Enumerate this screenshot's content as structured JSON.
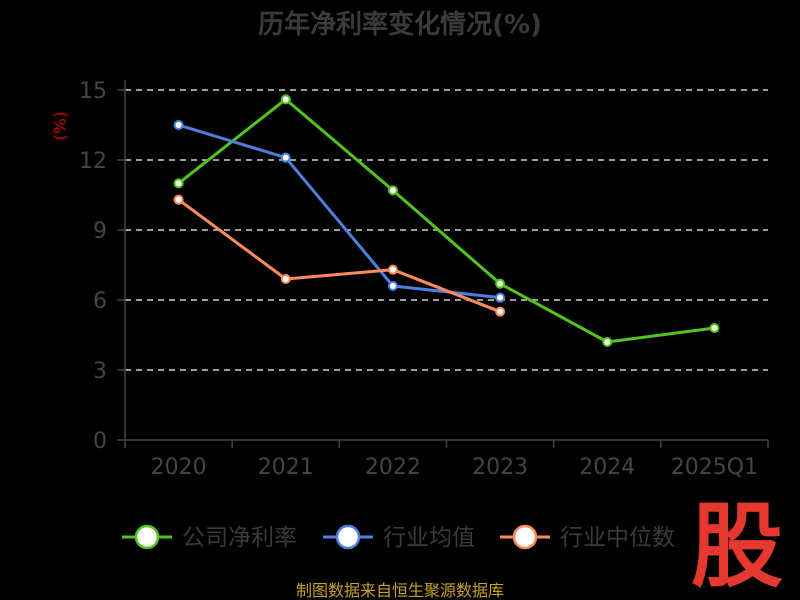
{
  "chart_data": {
    "type": "line",
    "title": "历年净利率变化情况(%)",
    "ylabel": "(%)",
    "categories": [
      "2020",
      "2021",
      "2022",
      "2023",
      "2024",
      "2025Q1"
    ],
    "ylim": [
      0,
      15
    ],
    "yticks": [
      0,
      3,
      6,
      9,
      12,
      15
    ],
    "grid": true,
    "legend_position": "bottom",
    "series": [
      {
        "name": "公司净利率",
        "color": "#52c41a",
        "values": [
          11.0,
          14.6,
          10.7,
          6.7,
          4.2,
          4.8
        ]
      },
      {
        "name": "行业均值",
        "color": "#4e7fe0",
        "values": [
          13.5,
          12.1,
          6.6,
          6.1,
          null,
          null
        ]
      },
      {
        "name": "行业中位数",
        "color": "#ff8a5c",
        "values": [
          10.3,
          6.9,
          7.3,
          5.5,
          null,
          null
        ]
      }
    ]
  },
  "source": "制图数据来自恒生聚源数据库",
  "logo_text": "股"
}
